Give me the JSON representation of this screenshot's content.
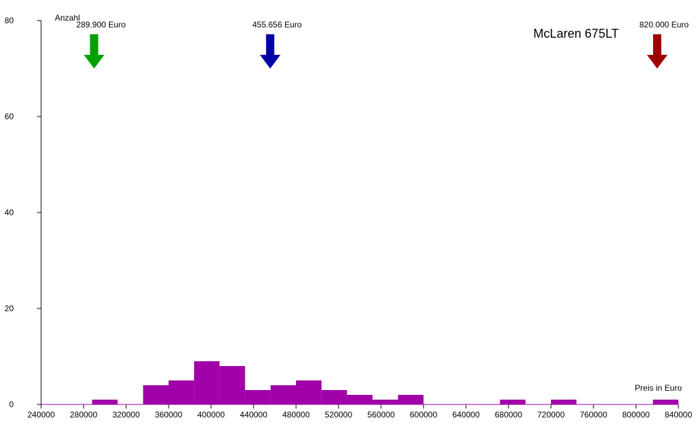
{
  "chart_data": {
    "type": "histogram",
    "title": "McLaren 675LT",
    "y_label": "Anzahl",
    "x_label": "Preis in Euro",
    "bins": [
      288000,
      312000,
      336000,
      360000,
      384000,
      408000,
      432000,
      456000,
      480000,
      504000,
      528000,
      552000,
      576000,
      600000,
      624000,
      648000,
      672000,
      696000,
      720000,
      744000,
      768000,
      792000,
      816000,
      840000
    ],
    "values": [
      1,
      0,
      4,
      5,
      9,
      8,
      3,
      4,
      5,
      3,
      2,
      1,
      2,
      0,
      0,
      0,
      1,
      0,
      1,
      0,
      0,
      0,
      1
    ],
    "color": "#a000a8",
    "xlim": [
      240000,
      840000
    ],
    "xticks": [
      240000,
      280000,
      320000,
      360000,
      400000,
      440000,
      480000,
      520000,
      560000,
      600000,
      640000,
      680000,
      720000,
      760000,
      800000,
      840000
    ],
    "ylim": [
      0,
      80
    ],
    "yticks": [
      0,
      20,
      40,
      60,
      80
    ],
    "markers": [
      {
        "value": 289900,
        "label": "289.900 Euro",
        "color": "#00a000"
      },
      {
        "value": 455656,
        "label": "455.656 Euro",
        "color": "#0000a8"
      },
      {
        "value": 820000,
        "label": "820.000 Euro",
        "color": "#a00000"
      }
    ]
  }
}
